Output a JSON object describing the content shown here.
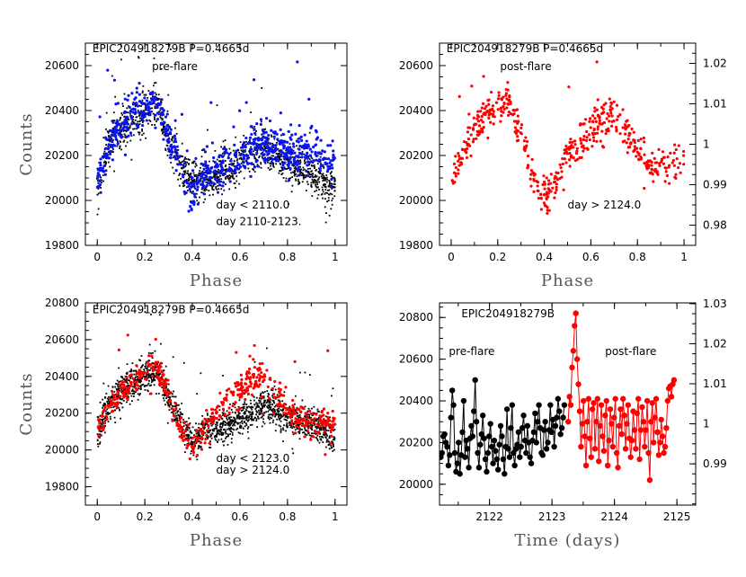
{
  "colors": {
    "black": "#000000",
    "blue": "#0a14f0",
    "red": "#ff0000",
    "frame": "#000000"
  },
  "chart_data": [
    {
      "id": "p1",
      "type": "scatter",
      "xlabel": "Phase",
      "ylabel": "Counts",
      "xlim": [
        -0.05,
        1.05
      ],
      "ylim": [
        19800,
        20700
      ],
      "xticks": [
        0,
        0.2,
        0.4,
        0.6,
        0.8,
        1
      ],
      "yticks": [
        19800,
        20000,
        20200,
        20400,
        20600
      ],
      "annotations": [
        {
          "text": "EPIC204918279B P=0.4665d",
          "x": -0.02,
          "y": 20660,
          "color": "#000000"
        },
        {
          "text": "pre-flare",
          "x": 0.23,
          "y": 20580,
          "color": "#000000"
        },
        {
          "text": "day < 2110.0",
          "x": 0.5,
          "y": 19965,
          "color": "#000000"
        },
        {
          "text": "day 2110-2123.",
          "x": 0.5,
          "y": 19890,
          "color": "#0a14f0"
        }
      ],
      "series": [
        {
          "label": "day < 2110.0",
          "color": "#000000",
          "n": 1400,
          "spread": 45,
          "seed": 11,
          "curve": [
            [
              0,
              20050
            ],
            [
              0.05,
              20250
            ],
            [
              0.12,
              20340
            ],
            [
              0.2,
              20390
            ],
            [
              0.25,
              20420
            ],
            [
              0.3,
              20280
            ],
            [
              0.36,
              20140
            ],
            [
              0.42,
              20080
            ],
            [
              0.5,
              20110
            ],
            [
              0.6,
              20180
            ],
            [
              0.7,
              20240
            ],
            [
              0.78,
              20180
            ],
            [
              0.88,
              20140
            ],
            [
              1.0,
              20040
            ]
          ]
        },
        {
          "label": "day 2110-2123.",
          "color": "#0a14f0",
          "n": 700,
          "spread": 45,
          "seed": 23,
          "curve": [
            [
              0,
              20080
            ],
            [
              0.05,
              20260
            ],
            [
              0.12,
              20360
            ],
            [
              0.2,
              20420
            ],
            [
              0.25,
              20440
            ],
            [
              0.3,
              20300
            ],
            [
              0.36,
              20120
            ],
            [
              0.4,
              20030
            ],
            [
              0.45,
              20110
            ],
            [
              0.55,
              20160
            ],
            [
              0.65,
              20230
            ],
            [
              0.72,
              20260
            ],
            [
              0.8,
              20220
            ],
            [
              0.9,
              20230
            ],
            [
              1.0,
              20150
            ]
          ]
        }
      ]
    },
    {
      "id": "p2",
      "type": "scatter",
      "xlabel": "Phase",
      "ylabel": "",
      "xlim": [
        -0.05,
        1.05
      ],
      "ylim": [
        19800,
        20700
      ],
      "ylim_right": [
        0.975,
        1.025
      ],
      "xticks": [
        0,
        0.2,
        0.4,
        0.6,
        0.8,
        1
      ],
      "yticks": [
        19800,
        20000,
        20200,
        20400,
        20600
      ],
      "yticks_right": [
        0.98,
        0.99,
        1,
        1.01,
        1.02
      ],
      "annotations": [
        {
          "text": "EPIC204918279B P=0.4665d",
          "x": -0.02,
          "y": 20660,
          "color": "#000000"
        },
        {
          "text": "post-flare",
          "x": 0.21,
          "y": 20580,
          "color": "#000000"
        },
        {
          "text": "day > 2124.0",
          "x": 0.5,
          "y": 19965,
          "color": "#000000"
        }
      ],
      "series": [
        {
          "label": "day > 2124.0",
          "color": "#ff0000",
          "n": 520,
          "spread": 40,
          "seed": 37,
          "curve": [
            [
              0,
              20100
            ],
            [
              0.05,
              20220
            ],
            [
              0.12,
              20340
            ],
            [
              0.2,
              20420
            ],
            [
              0.25,
              20440
            ],
            [
              0.3,
              20300
            ],
            [
              0.35,
              20100
            ],
            [
              0.4,
              20020
            ],
            [
              0.45,
              20090
            ],
            [
              0.5,
              20180
            ],
            [
              0.6,
              20320
            ],
            [
              0.68,
              20380
            ],
            [
              0.72,
              20370
            ],
            [
              0.78,
              20250
            ],
            [
              0.85,
              20150
            ],
            [
              0.92,
              20160
            ],
            [
              1.0,
              20150
            ]
          ]
        }
      ]
    },
    {
      "id": "p3",
      "type": "scatter",
      "xlabel": "Phase",
      "ylabel": "Counts",
      "xlim": [
        -0.05,
        1.05
      ],
      "ylim": [
        19700,
        20800
      ],
      "xticks": [
        0,
        0.2,
        0.4,
        0.6,
        0.8,
        1
      ],
      "yticks": [
        19800,
        20000,
        20200,
        20400,
        20600,
        20800
      ],
      "annotations": [
        {
          "text": "EPIC204918279B P=0.4665d",
          "x": -0.02,
          "y": 20745,
          "color": "#000000"
        },
        {
          "text": "day < 2123.0",
          "x": 0.5,
          "y": 19935,
          "color": "#000000"
        },
        {
          "text": "day > 2124.0",
          "x": 0.5,
          "y": 19870,
          "color": "#ff0000"
        }
      ],
      "series": [
        {
          "label": "day < 2123.0",
          "color": "#000000",
          "n": 1700,
          "spread": 45,
          "seed": 53,
          "curve": [
            [
              0,
              20080
            ],
            [
              0.05,
              20250
            ],
            [
              0.12,
              20350
            ],
            [
              0.2,
              20410
            ],
            [
              0.25,
              20420
            ],
            [
              0.3,
              20290
            ],
            [
              0.36,
              20120
            ],
            [
              0.4,
              20040
            ],
            [
              0.45,
              20100
            ],
            [
              0.55,
              20140
            ],
            [
              0.65,
              20200
            ],
            [
              0.72,
              20250
            ],
            [
              0.8,
              20180
            ],
            [
              0.9,
              20150
            ],
            [
              1.0,
              20060
            ]
          ]
        },
        {
          "label": "day > 2124.0",
          "color": "#ff0000",
          "n": 520,
          "spread": 40,
          "seed": 71,
          "curve": [
            [
              0,
              20100
            ],
            [
              0.05,
              20220
            ],
            [
              0.12,
              20340
            ],
            [
              0.2,
              20420
            ],
            [
              0.25,
              20440
            ],
            [
              0.3,
              20300
            ],
            [
              0.35,
              20100
            ],
            [
              0.4,
              20020
            ],
            [
              0.45,
              20090
            ],
            [
              0.5,
              20200
            ],
            [
              0.6,
              20330
            ],
            [
              0.68,
              20390
            ],
            [
              0.72,
              20370
            ],
            [
              0.78,
              20250
            ],
            [
              0.85,
              20150
            ],
            [
              0.92,
              20160
            ],
            [
              1.0,
              20150
            ]
          ]
        }
      ]
    },
    {
      "id": "p4",
      "type": "line",
      "xlabel": "Time (days)",
      "ylabel": "",
      "xlim": [
        2121.2,
        2125.3
      ],
      "ylim": [
        19900,
        20870
      ],
      "ylim_right": [
        0.9797,
        1.0302
      ],
      "xticks": [
        2122,
        2123,
        2124,
        2125
      ],
      "yticks": [
        20000,
        20200,
        20400,
        20600,
        20800
      ],
      "yticks_right": [
        0.99,
        1,
        1.01,
        1.02,
        1.03
      ],
      "annotations": [
        {
          "text": "EPIC204918279B",
          "x": 2121.55,
          "y": 20800,
          "color": "#000000"
        },
        {
          "text": "pre-flare",
          "x": 2121.35,
          "y": 20620,
          "color": "#000000"
        },
        {
          "text": "post-flare",
          "x": 2123.85,
          "y": 20620,
          "color": "#ff0000"
        }
      ],
      "series": [
        {
          "label": "pre-flare",
          "color": "#000000",
          "x0": 2121.22,
          "dx": 0.0204,
          "values": [
            20130,
            20150,
            20230,
            20240,
            20200,
            20180,
            20090,
            20140,
            20320,
            20450,
            20380,
            20150,
            20060,
            20100,
            20200,
            20050,
            20140,
            20250,
            20400,
            20130,
            20210,
            20170,
            20080,
            20220,
            20280,
            20230,
            20350,
            20500,
            20300,
            20150,
            20080,
            20190,
            20240,
            20330,
            20220,
            20120,
            20060,
            20150,
            20230,
            20290,
            20180,
            20100,
            20210,
            20160,
            20120,
            20070,
            20190,
            20280,
            20230,
            20120,
            20050,
            20180,
            20360,
            20170,
            20130,
            20270,
            20380,
            20150,
            20090,
            20170,
            20190,
            20250,
            20130,
            20180,
            20270,
            20330,
            20210,
            20150,
            20280,
            20200,
            20130,
            20100,
            20210,
            20250,
            20340,
            20200,
            20300,
            20380,
            20270,
            20150,
            20140,
            20260,
            20300,
            20170,
            20200,
            20260,
            20380,
            20250,
            20310,
            20180,
            20280,
            20320,
            20410,
            20350,
            20240,
            20270,
            20320,
            20380
          ]
        },
        {
          "label": "post-flare",
          "color": "#ff0000",
          "x0": 2123.26,
          "dx": 0.0204,
          "values": [
            20300,
            20420,
            20380,
            20560,
            20640,
            20760,
            20820,
            20600,
            20480,
            20350,
            20180,
            20290,
            20400,
            20230,
            20090,
            20300,
            20410,
            20220,
            20130,
            20360,
            20390,
            20170,
            20300,
            20410,
            20110,
            20280,
            20380,
            20230,
            20160,
            20330,
            20400,
            20090,
            20210,
            20360,
            20290,
            20180,
            20320,
            20410,
            20150,
            20080,
            20280,
            20360,
            20240,
            20410,
            20330,
            20170,
            20290,
            20380,
            20220,
            20130,
            20210,
            20350,
            20260,
            20170,
            20340,
            20410,
            20120,
            20260,
            20370,
            20300,
            20180,
            20260,
            20400,
            20150,
            20020,
            20300,
            20390,
            20200,
            20320,
            20410,
            20250,
            20140,
            20200,
            20310,
            20230,
            20150,
            20180,
            20270,
            20400,
            20460,
            20470,
            20420,
            20480,
            20500
          ]
        }
      ]
    }
  ]
}
